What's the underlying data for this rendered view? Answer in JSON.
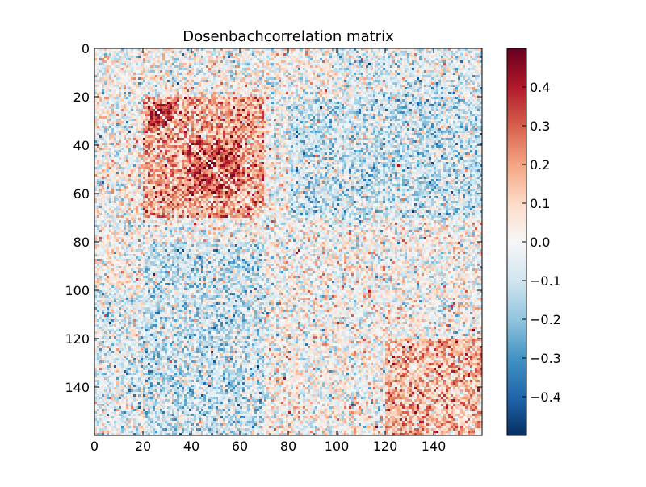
{
  "chart_data": {
    "type": "heatmap",
    "title": "Dosenbachcorrelation matrix",
    "matrix_size": 160,
    "x_ticks": [
      0,
      20,
      40,
      60,
      80,
      100,
      120,
      140
    ],
    "y_ticks": [
      0,
      20,
      40,
      60,
      80,
      100,
      120,
      140
    ],
    "x_tick_labels": [
      "0",
      "20",
      "40",
      "60",
      "80",
      "100",
      "120",
      "140"
    ],
    "y_tick_labels": [
      "0",
      "20",
      "40",
      "60",
      "80",
      "100",
      "120",
      "140"
    ],
    "colorbar": {
      "min": -0.5,
      "max": 0.5,
      "colormap": "RdBu_r",
      "ticks": [
        0.4,
        0.3,
        0.2,
        0.1,
        0.0,
        -0.1,
        -0.2,
        -0.3,
        -0.4
      ],
      "tick_labels": [
        "0.4",
        "0.3",
        "0.2",
        "0.1",
        "0.0",
        "−0.1",
        "−0.2",
        "−0.3",
        "−0.4"
      ]
    },
    "block_structure": [
      {
        "rows": [
          20,
          70
        ],
        "cols": [
          20,
          70
        ],
        "mean": 0.18
      },
      {
        "rows": [
          22,
          32
        ],
        "cols": [
          22,
          32
        ],
        "mean": 0.35
      },
      {
        "rows": [
          38,
          60
        ],
        "cols": [
          38,
          60
        ],
        "mean": 0.3
      },
      {
        "rows": [
          120,
          160
        ],
        "cols": [
          120,
          160
        ],
        "mean": 0.15
      },
      {
        "rows": [
          20,
          70
        ],
        "cols": [
          80,
          160
        ],
        "mean": -0.1
      },
      {
        "rows": [
          100,
          160
        ],
        "cols": [
          0,
          70
        ],
        "mean": -0.06
      }
    ],
    "grid": false
  }
}
